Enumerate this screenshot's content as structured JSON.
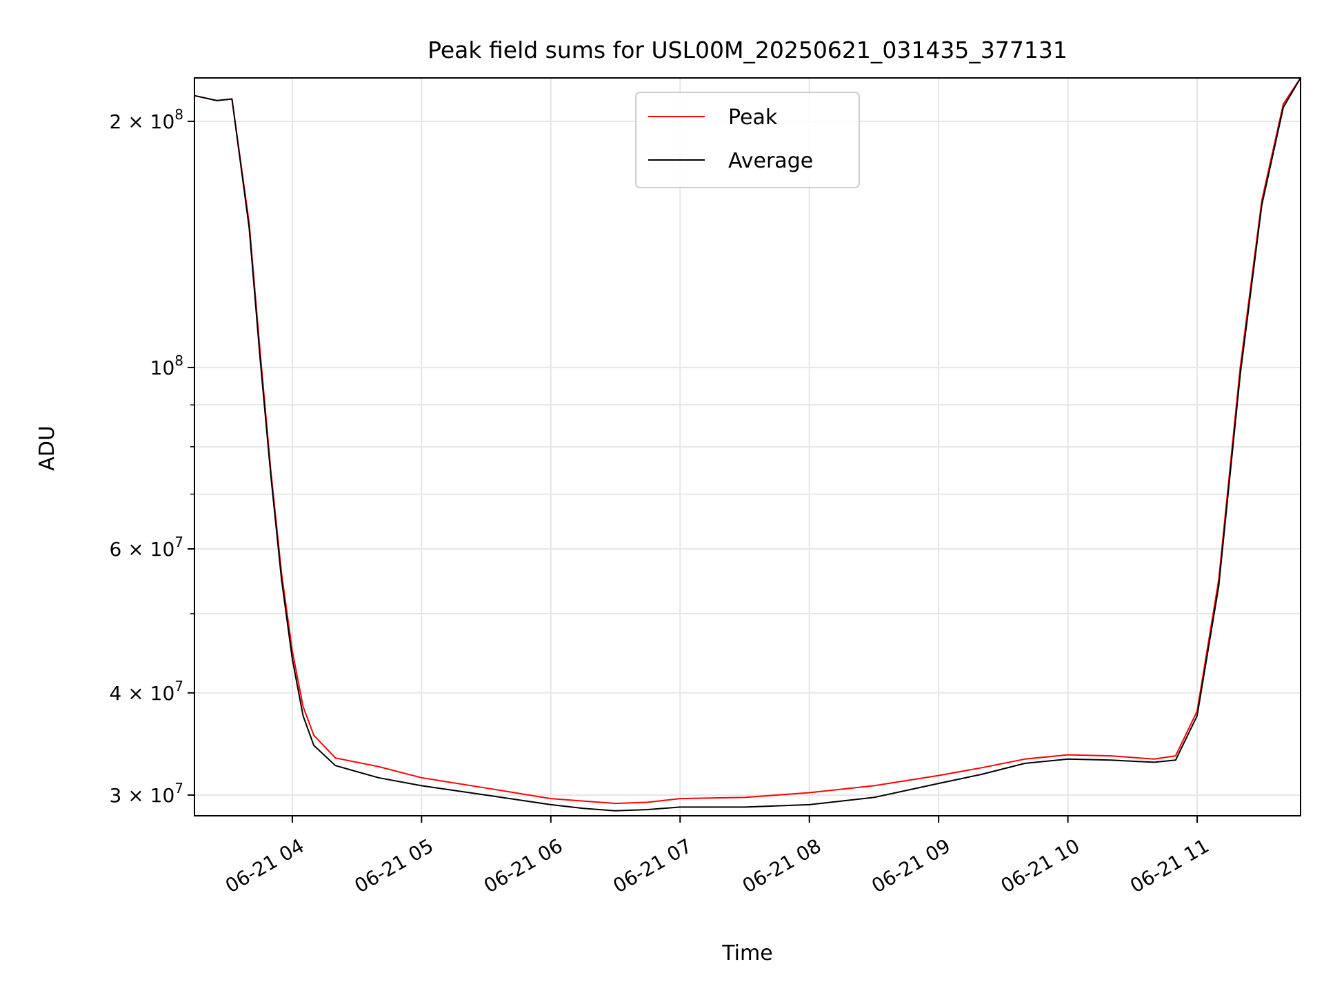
{
  "chart_data": {
    "type": "line",
    "title": "Peak field sums for USL00M_20250621_031435_377131",
    "xlabel": "Time",
    "ylabel": "ADU",
    "x_axis": {
      "kind": "datetime",
      "range": [
        "2025-06-21T03:14:35",
        "2025-06-21T11:48:00"
      ],
      "ticks": [
        "2025-06-21T04:00",
        "2025-06-21T05:00",
        "2025-06-21T06:00",
        "2025-06-21T07:00",
        "2025-06-21T08:00",
        "2025-06-21T09:00",
        "2025-06-21T10:00",
        "2025-06-21T11:00"
      ],
      "tick_labels": [
        "06-21 04",
        "06-21 05",
        "06-21 06",
        "06-21 07",
        "06-21 08",
        "06-21 09",
        "06-21 10",
        "06-21 11"
      ],
      "tick_label_rotation_deg": 30
    },
    "y_axis": {
      "scale": "log",
      "range": [
        28300000,
        226000000
      ],
      "ticks": [
        {
          "value": 30000000,
          "mantissa": "3",
          "exponent": "7"
        },
        {
          "value": 40000000,
          "mantissa": "4",
          "exponent": "7"
        },
        {
          "value": 60000000,
          "mantissa": "6",
          "exponent": "7"
        },
        {
          "value": 100000000,
          "mantissa": "",
          "exponent": "8"
        },
        {
          "value": 200000000,
          "mantissa": "2",
          "exponent": "8"
        }
      ],
      "minor_ticks": [
        50000000,
        70000000,
        80000000,
        90000000
      ]
    },
    "grid": true,
    "legend_position": "top-center",
    "series": [
      {
        "name": "Peak",
        "color": "#ff0000",
        "x": [
          "2025-06-21T03:14:35",
          "2025-06-21T03:25",
          "2025-06-21T03:32",
          "2025-06-21T03:40",
          "2025-06-21T03:45",
          "2025-06-21T03:50",
          "2025-06-21T03:55",
          "2025-06-21T04:00",
          "2025-06-21T04:05",
          "2025-06-21T04:10",
          "2025-06-21T04:20",
          "2025-06-21T04:40",
          "2025-06-21T05:00",
          "2025-06-21T05:30",
          "2025-06-21T06:00",
          "2025-06-21T06:15",
          "2025-06-21T06:30",
          "2025-06-21T06:45",
          "2025-06-21T07:00",
          "2025-06-21T07:30",
          "2025-06-21T08:00",
          "2025-06-21T08:30",
          "2025-06-21T09:00",
          "2025-06-21T09:20",
          "2025-06-21T09:40",
          "2025-06-21T10:00",
          "2025-06-21T10:20",
          "2025-06-21T10:40",
          "2025-06-21T10:50",
          "2025-06-21T11:00",
          "2025-06-21T11:10",
          "2025-06-21T11:20",
          "2025-06-21T11:30",
          "2025-06-21T11:40",
          "2025-06-21T11:48"
        ],
        "y": [
          215000000,
          212000000,
          213000000,
          150000000,
          105000000,
          75000000,
          56000000,
          45000000,
          38500000,
          35500000,
          33300000,
          32500000,
          31500000,
          30600000,
          29700000,
          29500000,
          29300000,
          29400000,
          29700000,
          29800000,
          30200000,
          30800000,
          31700000,
          32400000,
          33200000,
          33600000,
          33500000,
          33200000,
          33500000,
          38000000,
          55000000,
          100000000,
          160000000,
          210000000,
          226000000
        ]
      },
      {
        "name": "Average",
        "color": "#000000",
        "x": [
          "2025-06-21T03:14:35",
          "2025-06-21T03:25",
          "2025-06-21T03:32",
          "2025-06-21T03:40",
          "2025-06-21T03:45",
          "2025-06-21T03:50",
          "2025-06-21T03:55",
          "2025-06-21T04:00",
          "2025-06-21T04:05",
          "2025-06-21T04:10",
          "2025-06-21T04:20",
          "2025-06-21T04:40",
          "2025-06-21T05:00",
          "2025-06-21T05:30",
          "2025-06-21T06:00",
          "2025-06-21T06:15",
          "2025-06-21T06:30",
          "2025-06-21T06:45",
          "2025-06-21T07:00",
          "2025-06-21T07:30",
          "2025-06-21T08:00",
          "2025-06-21T08:30",
          "2025-06-21T09:00",
          "2025-06-21T09:20",
          "2025-06-21T09:40",
          "2025-06-21T10:00",
          "2025-06-21T10:20",
          "2025-06-21T10:40",
          "2025-06-21T10:50",
          "2025-06-21T11:00",
          "2025-06-21T11:10",
          "2025-06-21T11:20",
          "2025-06-21T11:30",
          "2025-06-21T11:40",
          "2025-06-21T11:48"
        ],
        "y": [
          215000000,
          212000000,
          213000000,
          148000000,
          103000000,
          74000000,
          55000000,
          44000000,
          37500000,
          34500000,
          32600000,
          31500000,
          30800000,
          30000000,
          29200000,
          28900000,
          28700000,
          28800000,
          29000000,
          29000000,
          29200000,
          29800000,
          31000000,
          31800000,
          32800000,
          33200000,
          33100000,
          32900000,
          33100000,
          37500000,
          54000000,
          98000000,
          158000000,
          208000000,
          226000000
        ]
      }
    ]
  }
}
